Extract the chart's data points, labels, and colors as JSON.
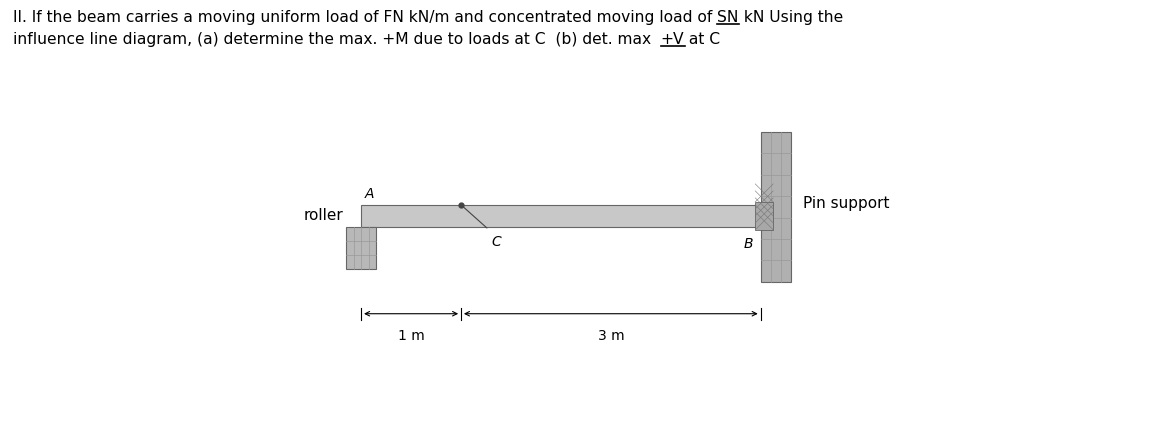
{
  "bg_color": "#ffffff",
  "title_line1_parts": [
    [
      "II. If the beam carries a moving uniform load of FN kN/m and concentrated moving load of ",
      false
    ],
    [
      "SN",
      true
    ],
    [
      " kN Using the",
      false
    ]
  ],
  "title_line2_parts": [
    [
      "influence line diagram, (a) determine the max. +M due to loads at C  (b) det. max  ",
      false
    ],
    [
      "+V",
      true
    ],
    [
      " at C",
      false
    ]
  ],
  "beam_color": "#c8c8c8",
  "beam_edge_color": "#666666",
  "wall_color": "#b0b0b0",
  "wall_edge_color": "#666666",
  "roller_color": "#b8b8b8",
  "pin_hatch_color": "#888888",
  "label_roller": "roller",
  "label_A": "A",
  "label_B": "B",
  "label_C": "C",
  "label_pin": "Pin support",
  "dim_label_1m": "1 m",
  "dim_label_3m": "3 m"
}
